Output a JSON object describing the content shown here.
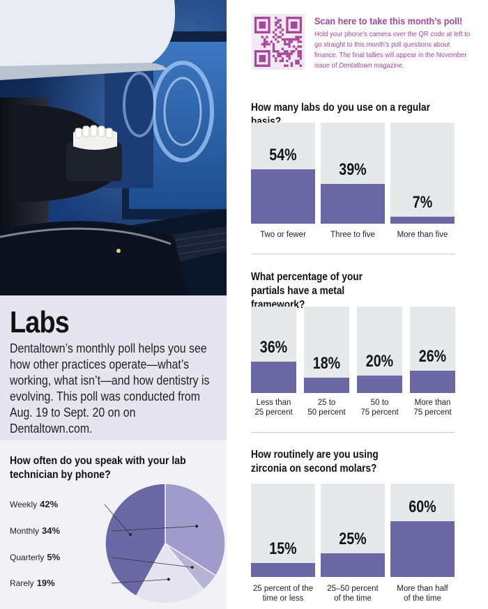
{
  "intro": {
    "title": "Labs",
    "body": "Dentaltown’s monthly poll helps you see how other practices operate—what’s working, what isn’t—and how dentistry is evolving. This poll was conducted from Aug. 19 to Sept. 20 on on Dentaltown.com."
  },
  "qr": {
    "title": "Scan here to take this month’s poll!",
    "text_before": "Hold your phone’s camera over the QR code at left to go straight to this month’s poll questions about finance. The final tallies will appear in the November issue of ",
    "magazine": "Dentaltown",
    "text_after": " magazine."
  },
  "colors": {
    "bar_fill": "#6c68a6",
    "bar_track": "#e6e8ea",
    "qr_accent": "#a8479a",
    "pie": [
      "#6c68a6",
      "#9f9ccb",
      "#b6b4d6",
      "#e4e3ef"
    ]
  },
  "chart_data": [
    {
      "id": "labs",
      "type": "bar",
      "title": "How many labs do you use on a regular basis?",
      "categories": [
        "Two or fewer",
        "Three to five",
        "More than five"
      ],
      "values": [
        54,
        39,
        7
      ],
      "value_labels": [
        "54%",
        "39%",
        "7%"
      ],
      "ylim": [
        0,
        100
      ]
    },
    {
      "id": "partials",
      "type": "bar",
      "title": "What percentage of your partials have a metal framework?",
      "categories": [
        "Less than\n25 percent",
        "25 to\n50 percent",
        "50 to\n75 percent",
        "More than\n75 percent"
      ],
      "values": [
        36,
        18,
        20,
        26
      ],
      "value_labels": [
        "36%",
        "18%",
        "20%",
        "26%"
      ],
      "ylim": [
        0,
        100
      ]
    },
    {
      "id": "zirconia",
      "type": "bar",
      "title": "How routinely are you using zirconia on second molars?",
      "categories": [
        "25 percent of the\ntime or less",
        "25–50 percent\nof the time",
        "More than half\nof the time"
      ],
      "values": [
        15,
        25,
        60
      ],
      "value_labels": [
        "15%",
        "25%",
        "60%"
      ],
      "ylim": [
        0,
        100
      ]
    },
    {
      "id": "phone",
      "type": "pie",
      "title": "How often do you speak with your lab technician by phone?",
      "categories": [
        "Weekly",
        "Monthly",
        "Quarterly",
        "Rarely"
      ],
      "values": [
        42,
        34,
        5,
        19
      ],
      "value_labels": [
        "42%",
        "34%",
        "5%",
        "19%"
      ]
    }
  ]
}
